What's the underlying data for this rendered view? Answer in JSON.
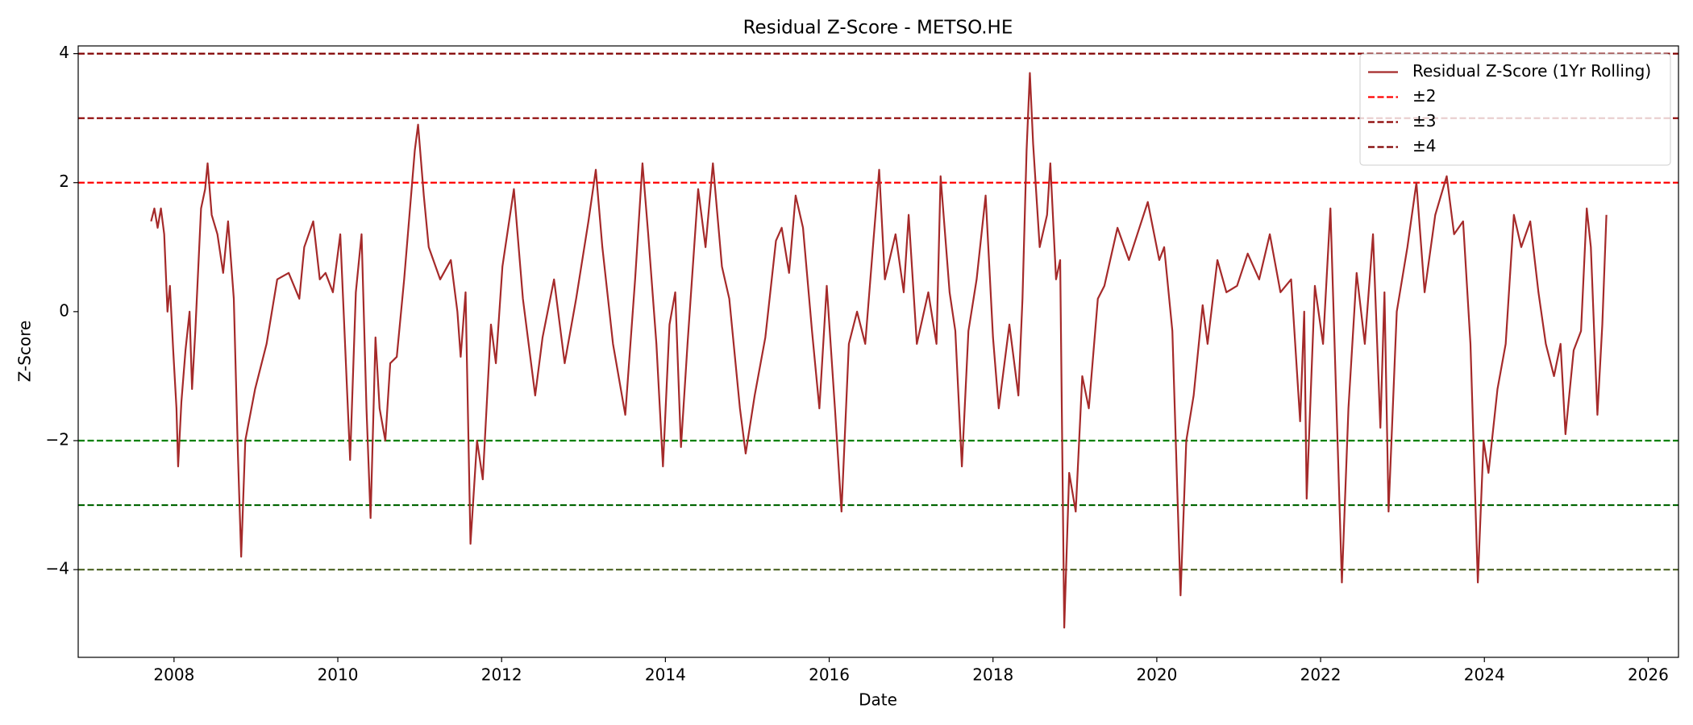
{
  "chart_data": {
    "type": "line",
    "title": "Residual Z-Score - METSO.HE",
    "x_label": "Date",
    "y_label": "Z-Score",
    "xlim": [
      2006.83,
      2026.37
    ],
    "ylim": [
      -5.36,
      4.12
    ],
    "xticks": [
      2008,
      2010,
      2012,
      2014,
      2016,
      2018,
      2020,
      2022,
      2024,
      2026
    ],
    "yticks": [
      {
        "value": -4,
        "label": "−4"
      },
      {
        "value": -2,
        "label": "−2"
      },
      0,
      2,
      4
    ],
    "grid": false,
    "legend_loc": "upper right",
    "series": [
      {
        "name": "Residual Z-Score (1Yr Rolling)",
        "color": "#a52a2a",
        "x": [
          2007.72,
          2007.76,
          2007.8,
          2007.84,
          2007.88,
          2007.92,
          2007.95,
          2007.99,
          2008.03,
          2008.05,
          2008.09,
          2008.14,
          2008.19,
          2008.22,
          2008.26,
          2008.33,
          2008.38,
          2008.41,
          2008.46,
          2008.53,
          2008.6,
          2008.66,
          2008.73,
          2008.78,
          2008.82,
          2008.87,
          2008.99,
          2009.13,
          2009.26,
          2009.4,
          2009.53,
          2009.59,
          2009.7,
          2009.78,
          2009.85,
          2009.94,
          2010.03,
          2010.15,
          2010.22,
          2010.29,
          2010.35,
          2010.4,
          2010.46,
          2010.51,
          2010.58,
          2010.64,
          2010.72,
          2010.81,
          2010.94,
          2010.98,
          2011.05,
          2011.11,
          2011.25,
          2011.38,
          2011.46,
          2011.5,
          2011.56,
          2011.62,
          2011.7,
          2011.77,
          2011.87,
          2011.93,
          2012.01,
          2012.15,
          2012.26,
          2012.41,
          2012.5,
          2012.64,
          2012.77,
          2012.91,
          2013.06,
          2013.15,
          2013.23,
          2013.36,
          2013.51,
          2013.63,
          2013.72,
          2013.79,
          2013.89,
          2013.97,
          2014.05,
          2014.12,
          2014.19,
          2014.27,
          2014.4,
          2014.49,
          2014.58,
          2014.69,
          2014.78,
          2014.91,
          2014.98,
          2015.09,
          2015.22,
          2015.35,
          2015.42,
          2015.51,
          2015.59,
          2015.68,
          2015.79,
          2015.88,
          2015.97,
          2016.07,
          2016.15,
          2016.24,
          2016.34,
          2016.44,
          2016.54,
          2016.61,
          2016.68,
          2016.81,
          2016.91,
          2016.97,
          2017.07,
          2017.21,
          2017.31,
          2017.36,
          2017.47,
          2017.54,
          2017.62,
          2017.7,
          2017.8,
          2017.91,
          2018.0,
          2018.07,
          2018.2,
          2018.31,
          2018.36,
          2018.41,
          2018.45,
          2018.49,
          2018.57,
          2018.66,
          2018.7,
          2018.77,
          2018.82,
          2018.87,
          2018.93,
          2019.01,
          2019.09,
          2019.17,
          2019.28,
          2019.36,
          2019.52,
          2019.66,
          2019.89,
          2020.03,
          2020.09,
          2020.19,
          2020.29,
          2020.36,
          2020.45,
          2020.56,
          2020.62,
          2020.74,
          2020.85,
          2020.98,
          2021.11,
          2021.25,
          2021.38,
          2021.51,
          2021.64,
          2021.75,
          2021.8,
          2021.83,
          2021.93,
          2022.03,
          2022.12,
          2022.26,
          2022.34,
          2022.44,
          2022.54,
          2022.64,
          2022.73,
          2022.78,
          2022.83,
          2022.93,
          2023.06,
          2023.17,
          2023.27,
          2023.4,
          2023.54,
          2023.63,
          2023.74,
          2023.83,
          2023.92,
          2023.99,
          2024.05,
          2024.16,
          2024.26,
          2024.36,
          2024.45,
          2024.56,
          2024.66,
          2024.75,
          2024.85,
          2024.93,
          2024.99,
          2025.09,
          2025.18,
          2025.25,
          2025.3,
          2025.38,
          2025.44,
          2025.49
        ],
        "values": [
          1.4,
          1.6,
          1.3,
          1.6,
          1.2,
          0.0,
          0.4,
          -0.6,
          -1.5,
          -2.4,
          -1.4,
          -0.6,
          0.0,
          -1.2,
          -0.3,
          1.6,
          1.9,
          2.3,
          1.5,
          1.2,
          0.6,
          1.4,
          0.2,
          -2.2,
          -3.8,
          -2.0,
          -1.2,
          -0.5,
          0.5,
          0.6,
          0.2,
          1.0,
          1.4,
          0.5,
          0.6,
          0.3,
          1.2,
          -2.3,
          0.3,
          1.2,
          -1.5,
          -3.2,
          -0.4,
          -1.5,
          -2.0,
          -0.8,
          -0.7,
          0.5,
          2.5,
          2.9,
          1.8,
          1.0,
          0.5,
          0.8,
          0.0,
          -0.7,
          0.3,
          -3.6,
          -2.0,
          -2.6,
          -0.2,
          -0.8,
          0.7,
          1.9,
          0.2,
          -1.3,
          -0.4,
          0.5,
          -0.8,
          0.2,
          1.4,
          2.2,
          1.0,
          -0.5,
          -1.6,
          0.5,
          2.3,
          1.2,
          -0.5,
          -2.4,
          -0.2,
          0.3,
          -2.1,
          -0.5,
          1.9,
          1.0,
          2.3,
          0.7,
          0.2,
          -1.5,
          -2.2,
          -1.3,
          -0.4,
          1.1,
          1.3,
          0.6,
          1.8,
          1.3,
          -0.3,
          -1.5,
          0.4,
          -1.5,
          -3.1,
          -0.5,
          0.0,
          -0.5,
          1.1,
          2.2,
          0.5,
          1.2,
          0.3,
          1.5,
          -0.5,
          0.3,
          -0.5,
          2.1,
          0.3,
          -0.3,
          -2.4,
          -0.3,
          0.5,
          1.8,
          -0.4,
          -1.5,
          -0.2,
          -1.3,
          0.2,
          2.5,
          3.7,
          2.6,
          1.0,
          1.5,
          2.3,
          0.5,
          0.8,
          -4.9,
          -2.5,
          -3.1,
          -1.0,
          -1.5,
          0.2,
          0.4,
          1.3,
          0.8,
          1.7,
          0.8,
          1.0,
          -0.3,
          -4.4,
          -2.0,
          -1.3,
          0.1,
          -0.5,
          0.8,
          0.3,
          0.4,
          0.9,
          0.5,
          1.2,
          0.3,
          0.5,
          -1.7,
          0.0,
          -2.9,
          0.4,
          -0.5,
          1.6,
          -4.2,
          -1.5,
          0.6,
          -0.5,
          1.2,
          -1.8,
          0.3,
          -3.1,
          0.0,
          1.0,
          2.0,
          0.3,
          1.5,
          2.1,
          1.2,
          1.4,
          -0.5,
          -4.2,
          -2.0,
          -2.5,
          -1.2,
          -0.5,
          1.5,
          1.0,
          1.4,
          0.3,
          -0.5,
          -1.0,
          -0.5,
          -1.9,
          -0.6,
          -0.3,
          1.6,
          1.0,
          -1.6,
          -0.2,
          1.5
        ]
      }
    ],
    "reference_lines": [
      {
        "name": "±2",
        "value": 2,
        "color": "#ff0000",
        "negative_value": -2,
        "negative_color": "#008000"
      },
      {
        "name": "±3",
        "value": 3,
        "color": "#8b0000",
        "negative_value": -3,
        "negative_color": "#006400"
      },
      {
        "name": "±4",
        "value": 4,
        "color": "#800000",
        "negative_value": -4,
        "negative_color": "#556b2f"
      }
    ]
  }
}
